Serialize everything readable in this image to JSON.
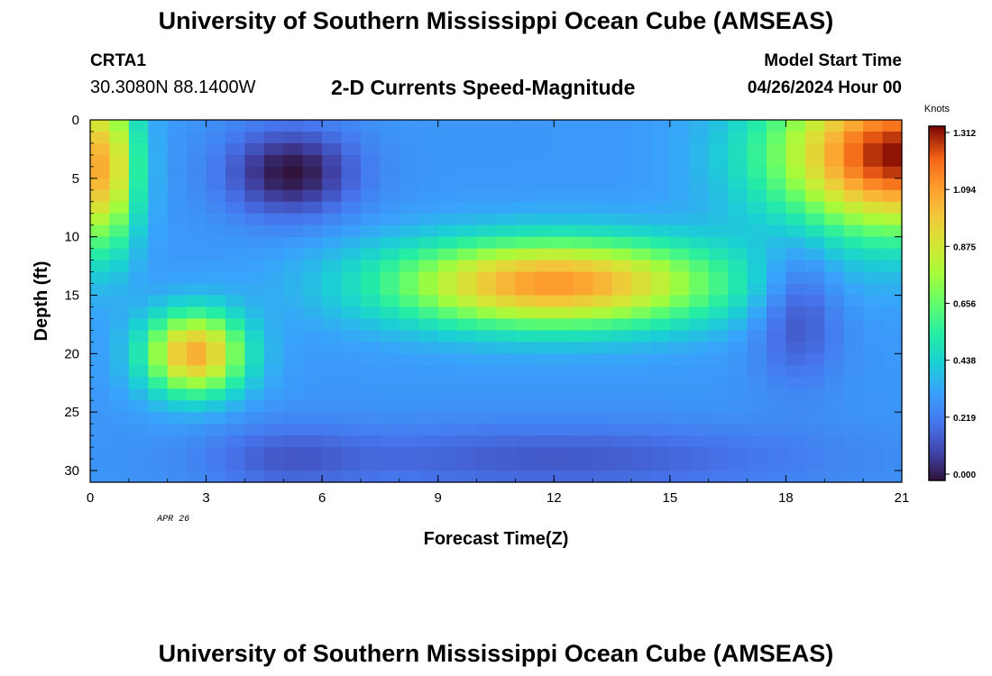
{
  "header": {
    "title": "University of Southern Mississippi Ocean Cube (AMSEAS)",
    "station": "CRTA1",
    "coords": "30.3080N  88.1400W",
    "subtitle": "2-D Currents Speed-Magnitude",
    "start_label": "Model Start Time",
    "start_value": "04/26/2024 Hour 00"
  },
  "footer": {
    "title": "University of Southern Mississippi Ocean Cube (AMSEAS)"
  },
  "chart_data": {
    "type": "heatmap",
    "title": "2-D Currents Speed-Magnitude",
    "xlabel": "Forecast Time(Z)",
    "ylabel": "Depth (ft)",
    "xlim": [
      0,
      21
    ],
    "ylim": [
      0,
      31
    ],
    "y_inverted": true,
    "x_ticks": [
      0,
      3,
      6,
      9,
      12,
      15,
      18,
      21
    ],
    "y_ticks": [
      0,
      5,
      10,
      15,
      20,
      25,
      30
    ],
    "x_annotation": "APR 26",
    "colorbar": {
      "label": "Knots",
      "min": 0.0,
      "max": 1.312,
      "ticks": [
        "0.000",
        "0.219",
        "0.438",
        "0.656",
        "0.875",
        "1.094",
        "1.312"
      ]
    },
    "features_knots": [
      {
        "t": 0.3,
        "depth": 5,
        "speed": 1.05,
        "desc": "strong surface current"
      },
      {
        "t": 5.2,
        "depth": 5,
        "speed": 0.02,
        "desc": "near-surface minimum"
      },
      {
        "t": 2.7,
        "depth": 20,
        "speed": 1.05,
        "desc": "mid-depth maximum"
      },
      {
        "t": 12.0,
        "depth": 14,
        "speed": 1.1,
        "desc": "broad mid-depth jet"
      },
      {
        "t": 18.3,
        "depth": 16,
        "speed": 0.12,
        "desc": "weak mid-depth flow"
      },
      {
        "t": 20.7,
        "depth": 3,
        "speed": 1.3,
        "desc": "surface maximum"
      },
      {
        "t": 12.0,
        "depth": 29,
        "speed": 0.18,
        "desc": "weak near-bottom flow"
      }
    ]
  }
}
